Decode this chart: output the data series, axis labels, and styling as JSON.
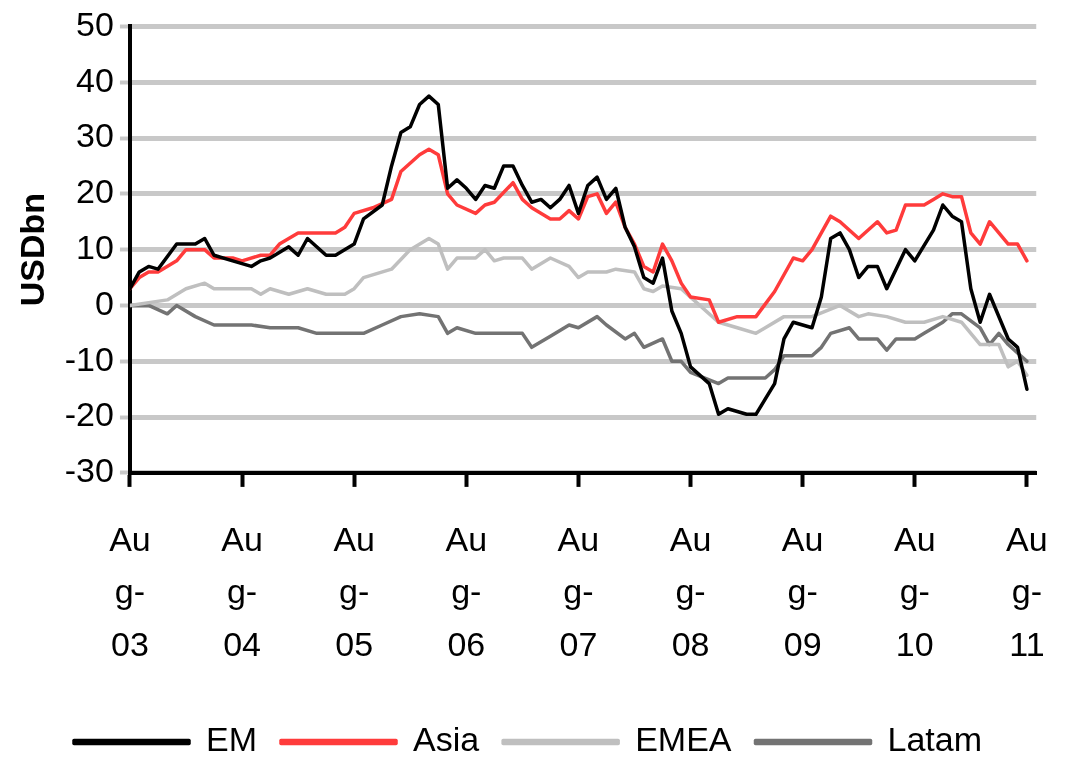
{
  "chart_data": {
    "type": "line",
    "ylabel": "USDbn",
    "xlim": [
      "2003-08",
      "2011-09"
    ],
    "xticks": [
      {
        "value": "2003-08",
        "label": "Aug-03"
      },
      {
        "value": "2004-08",
        "label": "Aug-04"
      },
      {
        "value": "2005-08",
        "label": "Aug-05"
      },
      {
        "value": "2006-08",
        "label": "Aug-06"
      },
      {
        "value": "2007-08",
        "label": "Aug-07"
      },
      {
        "value": "2008-08",
        "label": "Aug-08"
      },
      {
        "value": "2009-08",
        "label": "Aug-09"
      },
      {
        "value": "2010-08",
        "label": "Aug-10"
      },
      {
        "value": "2011-08",
        "label": "Aug-11"
      }
    ],
    "ylim": [
      -30,
      50
    ],
    "yticks": [
      -30,
      -20,
      -10,
      0,
      10,
      20,
      30,
      40,
      50
    ],
    "grid": "y",
    "legend": "bottom",
    "marker": "none",
    "line_style": "solid",
    "series": [
      {
        "name": "EM",
        "color": "#000000",
        "x": [
          "2003-08",
          "2003-09",
          "2003-10",
          "2003-11",
          "2004-01",
          "2004-03",
          "2004-04",
          "2004-05",
          "2004-07",
          "2004-09",
          "2004-10",
          "2004-11",
          "2005-01",
          "2005-02",
          "2005-03",
          "2005-05",
          "2005-06",
          "2005-08",
          "2005-09",
          "2005-11",
          "2005-12",
          "2006-01",
          "2006-02",
          "2006-03",
          "2006-04",
          "2006-05",
          "2006-06",
          "2006-07",
          "2006-08",
          "2006-09",
          "2006-10",
          "2006-11",
          "2006-12",
          "2007-01",
          "2007-02",
          "2007-03",
          "2007-04",
          "2007-05",
          "2007-06",
          "2007-07",
          "2007-08",
          "2007-09",
          "2007-10",
          "2007-11",
          "2007-12",
          "2008-01",
          "2008-02",
          "2008-03",
          "2008-04",
          "2008-05",
          "2008-06",
          "2008-07",
          "2008-08",
          "2008-10",
          "2008-11",
          "2008-12",
          "2009-02",
          "2009-03",
          "2009-05",
          "2009-06",
          "2009-07",
          "2009-09",
          "2009-10",
          "2009-11",
          "2009-12",
          "2010-01",
          "2010-02",
          "2010-03",
          "2010-04",
          "2010-05",
          "2010-07",
          "2010-08",
          "2010-10",
          "2010-11",
          "2010-12",
          "2011-01",
          "2011-02",
          "2011-03",
          "2011-04",
          "2011-06",
          "2011-07",
          "2011-08"
        ],
        "values": [
          3,
          6,
          7,
          6.5,
          11,
          11,
          12,
          9,
          8,
          7,
          8,
          8.5,
          10.5,
          9,
          12,
          9,
          9,
          11,
          15.5,
          18,
          25,
          31,
          32,
          36,
          37.5,
          36,
          21,
          22.5,
          21,
          19,
          21.5,
          21,
          25,
          25,
          21.5,
          18.5,
          19,
          17.5,
          19,
          21.5,
          16.5,
          21.5,
          23,
          19,
          21,
          14,
          10.5,
          5,
          4,
          8.5,
          -1,
          -5,
          -11,
          -14,
          -19.5,
          -18.5,
          -19.5,
          -19.5,
          -14,
          -6,
          -3,
          -4,
          1.5,
          12,
          13,
          10,
          5,
          7,
          7,
          3,
          10,
          8,
          13.5,
          18,
          16,
          15,
          3,
          -3,
          2,
          -6,
          -7.5,
          -15
        ]
      },
      {
        "name": "Asia",
        "color": "#ff3b3b",
        "x": [
          "2003-08",
          "2003-09",
          "2003-10",
          "2003-11",
          "2004-01",
          "2004-02",
          "2004-04",
          "2004-05",
          "2004-07",
          "2004-08",
          "2004-10",
          "2004-11",
          "2004-12",
          "2005-01",
          "2005-02",
          "2005-05",
          "2005-06",
          "2005-07",
          "2005-08",
          "2005-10",
          "2005-12",
          "2006-01",
          "2006-03",
          "2006-04",
          "2006-05",
          "2006-06",
          "2006-07",
          "2006-09",
          "2006-10",
          "2006-11",
          "2007-01",
          "2007-02",
          "2007-03",
          "2007-05",
          "2007-06",
          "2007-07",
          "2007-08",
          "2007-09",
          "2007-10",
          "2007-11",
          "2007-12",
          "2008-01",
          "2008-02",
          "2008-03",
          "2008-04",
          "2008-05",
          "2008-06",
          "2008-07",
          "2008-08",
          "2008-10",
          "2008-11",
          "2009-01",
          "2009-03",
          "2009-05",
          "2009-07",
          "2009-08",
          "2009-09",
          "2009-11",
          "2009-12",
          "2010-02",
          "2010-04",
          "2010-05",
          "2010-06",
          "2010-07",
          "2010-09",
          "2010-10",
          "2010-11",
          "2010-12",
          "2011-01",
          "2011-02",
          "2011-03",
          "2011-04",
          "2011-06",
          "2011-07",
          "2011-08"
        ],
        "values": [
          3,
          5,
          6,
          6,
          8,
          10,
          10,
          8.5,
          8.5,
          8,
          9,
          9,
          11,
          12,
          13,
          13,
          13,
          14,
          16.5,
          17.5,
          19,
          24,
          27,
          28,
          27,
          20,
          18,
          16.5,
          18,
          18.5,
          22,
          19,
          17.5,
          15.5,
          15.5,
          17,
          15.5,
          19.5,
          20,
          16.5,
          18.5,
          14,
          11,
          7,
          6,
          11,
          8,
          4,
          1.5,
          1,
          -3,
          -2,
          -2,
          2.5,
          8.5,
          8,
          10,
          16,
          15,
          12,
          15,
          13,
          13.5,
          18,
          18,
          19,
          20,
          19.5,
          19.5,
          13,
          11,
          15,
          11,
          11,
          8
        ]
      },
      {
        "name": "EMEA",
        "color": "#bfbfbf",
        "x": [
          "2003-08",
          "2003-12",
          "2004-02",
          "2004-04",
          "2004-05",
          "2004-09",
          "2004-10",
          "2004-11",
          "2005-01",
          "2005-03",
          "2005-05",
          "2005-07",
          "2005-08",
          "2005-09",
          "2005-12",
          "2006-02",
          "2006-04",
          "2006-05",
          "2006-06",
          "2006-07",
          "2006-09",
          "2006-10",
          "2006-11",
          "2006-12",
          "2007-02",
          "2007-03",
          "2007-05",
          "2007-07",
          "2007-08",
          "2007-09",
          "2007-11",
          "2007-12",
          "2008-02",
          "2008-03",
          "2008-04",
          "2008-05",
          "2008-07",
          "2008-08",
          "2008-11",
          "2009-01",
          "2009-03",
          "2009-04",
          "2009-06",
          "2009-09",
          "2009-12",
          "2010-02",
          "2010-03",
          "2010-05",
          "2010-07",
          "2010-09",
          "2010-11",
          "2011-01",
          "2011-03",
          "2011-05",
          "2011-06",
          "2011-07",
          "2011-08"
        ],
        "values": [
          0,
          1,
          3,
          4,
          3,
          3,
          2,
          3,
          2,
          3,
          2,
          2,
          3,
          5,
          6.5,
          10,
          12,
          11,
          6.5,
          8.5,
          8.5,
          10,
          8,
          8.5,
          8.5,
          6.5,
          8.5,
          7,
          5,
          6,
          6,
          6.5,
          6,
          3,
          2.5,
          3.5,
          3,
          1.5,
          -3,
          -4,
          -5,
          -4,
          -2,
          -2,
          0,
          -2,
          -1.5,
          -2,
          -3,
          -3,
          -2,
          -3,
          -7,
          -7,
          -11,
          -10,
          -12.5
        ]
      },
      {
        "name": "Latam",
        "color": "#737373",
        "x": [
          "2003-08",
          "2003-10",
          "2003-12",
          "2004-01",
          "2004-03",
          "2004-05",
          "2004-09",
          "2004-11",
          "2005-02",
          "2005-04",
          "2005-09",
          "2005-11",
          "2006-01",
          "2006-03",
          "2006-05",
          "2006-06",
          "2006-07",
          "2006-09",
          "2007-02",
          "2007-03",
          "2007-05",
          "2007-07",
          "2007-08",
          "2007-10",
          "2007-11",
          "2008-01",
          "2008-02",
          "2008-03",
          "2008-05",
          "2008-06",
          "2008-07",
          "2008-08",
          "2008-11",
          "2008-12",
          "2009-04",
          "2009-05",
          "2009-06",
          "2009-09",
          "2009-10",
          "2009-11",
          "2010-01",
          "2010-02",
          "2010-04",
          "2010-05",
          "2010-06",
          "2010-08",
          "2010-09",
          "2010-11",
          "2010-12",
          "2011-01",
          "2011-03",
          "2011-04",
          "2011-05",
          "2011-06",
          "2011-08"
        ],
        "values": [
          0,
          0,
          -1.5,
          0,
          -2,
          -3.5,
          -3.5,
          -4,
          -4,
          -5,
          -5,
          -3.5,
          -2,
          -1.5,
          -2,
          -5,
          -4,
          -5,
          -5,
          -7.5,
          -5.5,
          -3.5,
          -4,
          -2,
          -3.5,
          -6,
          -5,
          -7.5,
          -6,
          -10,
          -10,
          -12,
          -14,
          -13,
          -13,
          -11.5,
          -9,
          -9,
          -7.5,
          -5,
          -4,
          -6,
          -6,
          -8,
          -6,
          -6,
          -5,
          -3,
          -1.5,
          -1.5,
          -4,
          -7,
          -5,
          -7,
          -10
        ]
      }
    ]
  }
}
